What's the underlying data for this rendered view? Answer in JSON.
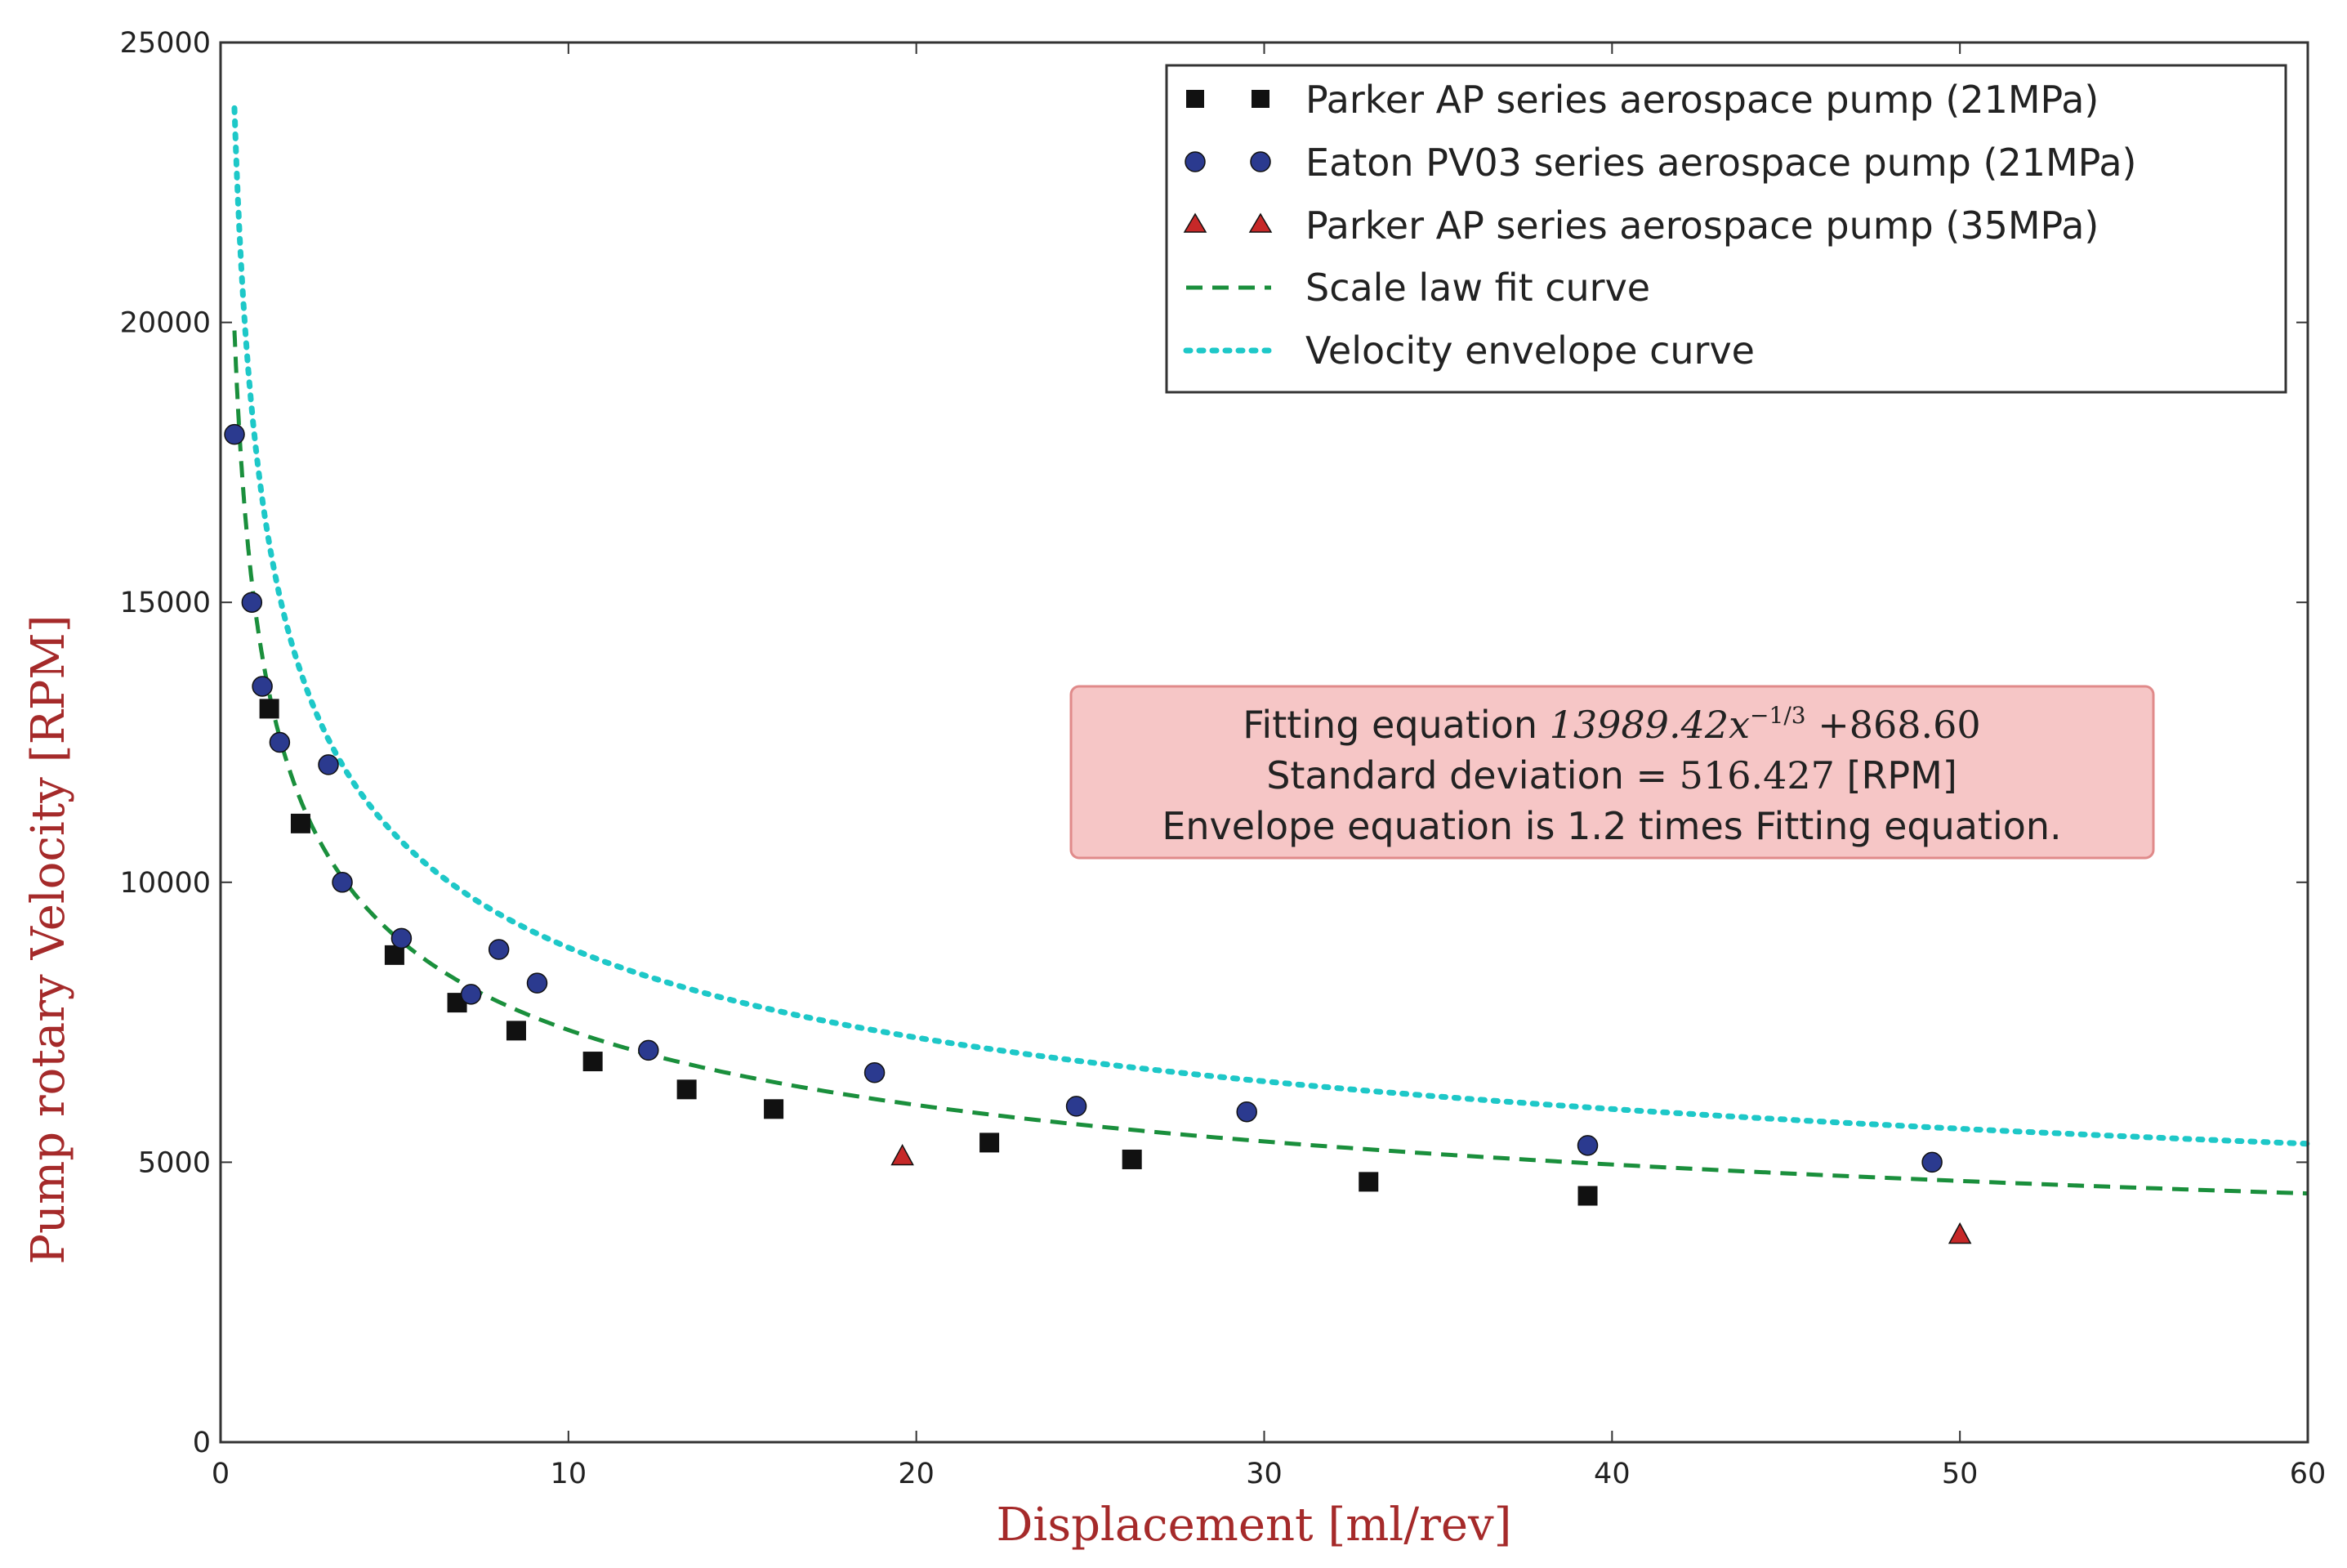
{
  "chart_data": {
    "type": "scatter",
    "xlabel": "Displacement [ml/rev]",
    "ylabel": "Pump rotary Velocity [RPM]",
    "xlim": [
      0,
      60
    ],
    "ylim": [
      0,
      25000
    ],
    "xticks": [
      0,
      10,
      20,
      30,
      40,
      50,
      60
    ],
    "yticks": [
      0,
      5000,
      10000,
      15000,
      20000,
      25000
    ],
    "ytick_labels": [
      "0",
      "5000",
      "10000",
      "15000",
      "20000",
      "25000"
    ],
    "xtick_labels": [
      "0",
      "10",
      "20",
      "30",
      "40",
      "50",
      "60"
    ],
    "grid": false,
    "legend_position": "top-right",
    "series": [
      {
        "name": "Parker AP series aerospace pump (21MPa)",
        "marker": "square",
        "color": "#111111",
        "points": [
          [
            1.4,
            13100
          ],
          [
            2.3,
            11050
          ],
          [
            5.0,
            8700
          ],
          [
            6.8,
            7850
          ],
          [
            8.5,
            7350
          ],
          [
            10.7,
            6800
          ],
          [
            13.4,
            6300
          ],
          [
            15.9,
            5950
          ],
          [
            22.1,
            5350
          ],
          [
            26.2,
            5050
          ],
          [
            33.0,
            4650
          ],
          [
            39.3,
            4400
          ]
        ]
      },
      {
        "name": "Eaton PV03 series aerospace pump (21MPa)",
        "marker": "circle",
        "color": "#2b3a8f",
        "points": [
          [
            0.4,
            18000
          ],
          [
            0.9,
            15000
          ],
          [
            1.2,
            13500
          ],
          [
            1.7,
            12500
          ],
          [
            3.1,
            12100
          ],
          [
            3.5,
            10000
          ],
          [
            5.2,
            9000
          ],
          [
            7.2,
            8000
          ],
          [
            8.0,
            8800
          ],
          [
            9.1,
            8200
          ],
          [
            12.3,
            7000
          ],
          [
            18.8,
            6600
          ],
          [
            24.6,
            6000
          ],
          [
            29.5,
            5900
          ],
          [
            39.3,
            5300
          ],
          [
            49.2,
            5000
          ]
        ]
      },
      {
        "name": "Parker AP series aerospace pump (35MPa)",
        "marker": "triangle",
        "color": "#c62828",
        "points": [
          [
            19.6,
            5100
          ],
          [
            50.0,
            3700
          ]
        ]
      },
      {
        "name": "Scale law fit curve",
        "line": "dashed",
        "color": "#1a8f3c",
        "formula": {
          "a": 13989.42,
          "exponent": -0.3333333,
          "b": 868.6,
          "factor": 1.0
        },
        "x_range": [
          0.4,
          60
        ]
      },
      {
        "name": "Velocity envelope curve",
        "line": "dotted",
        "color": "#1ec8c8",
        "formula": {
          "a": 13989.42,
          "exponent": -0.3333333,
          "b": 868.6,
          "factor": 1.2
        },
        "x_range": [
          0.4,
          60
        ]
      }
    ],
    "annotation": {
      "line1_prefix": "Fitting equation ",
      "line1_eq": "13989.42x",
      "line1_sup": "−1/3",
      "line1_suffix": " +868.60",
      "line2_prefix": "Standard deviation = ",
      "line2_value": "516.427",
      "line2_suffix": " [RPM]",
      "line3": "Envelope equation is 1.2 times Fitting equation.",
      "box_color": "#f6c6c6",
      "border_color": "#e08a8a"
    }
  }
}
